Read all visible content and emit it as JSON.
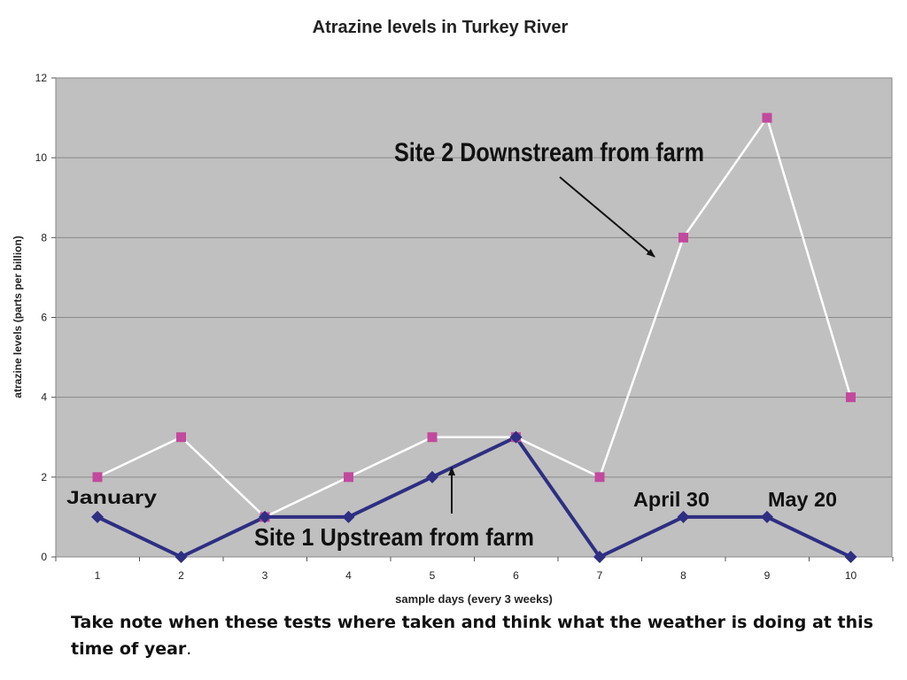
{
  "chart_data": {
    "type": "line",
    "title": "Atrazine levels in Turkey River",
    "xlabel": "sample days (every 3 weeks)",
    "ylabel": "atrazine levels (parts per billion)",
    "categories": [
      "1",
      "2",
      "3",
      "4",
      "5",
      "6",
      "7",
      "8",
      "9",
      "10"
    ],
    "ylim": [
      0,
      12
    ],
    "yticks": [
      "0",
      "2",
      "4",
      "6",
      "8",
      "10",
      "12"
    ],
    "grid": true,
    "series": [
      {
        "name": "Site 1 Upstream from farm",
        "values": [
          1,
          0,
          1,
          1,
          2,
          3,
          0,
          1,
          1,
          0
        ],
        "color": "#2e2e82",
        "marker": "diamond"
      },
      {
        "name": "Site 2 Downstream from farm",
        "values": [
          2,
          3,
          1,
          2,
          3,
          3,
          2,
          8,
          11,
          4
        ],
        "color": "#ffffff",
        "marker": "square",
        "marker_color": "#c2499e"
      }
    ],
    "annotations": [
      {
        "text": "Site 2 Downstream from farm",
        "arrow": true
      },
      {
        "text": "Site 1 Upstream from farm",
        "arrow": true
      },
      {
        "text": "January"
      },
      {
        "text": "April 30"
      },
      {
        "text": "May 20"
      }
    ],
    "plot_background": "#c0c0c0",
    "gridline_color": "#8a8a8a"
  },
  "caption": {
    "text": "Take note when these tests where taken and think what the weather is doing at this time of year",
    "period": "."
  }
}
